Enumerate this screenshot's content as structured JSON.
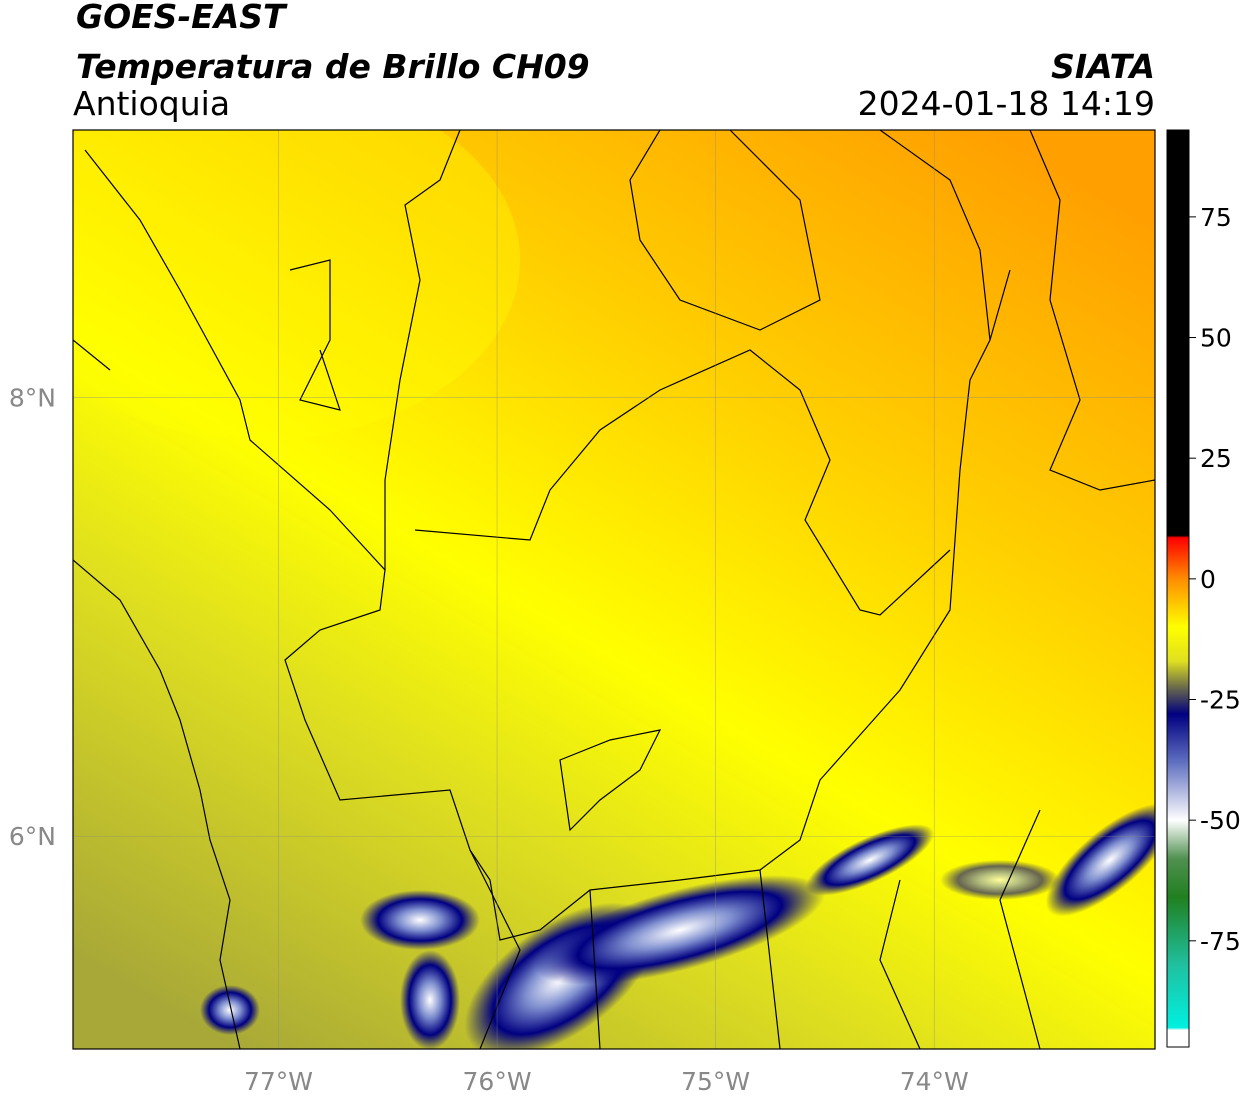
{
  "header": {
    "title": "GOES-EAST",
    "subtitle": "Temperatura de Brillo CH09",
    "region": "Antioquia",
    "source": "SIATA",
    "datetime": "2024-01-18 14:19"
  },
  "map": {
    "lon_range": [
      -77.94,
      -72.99
    ],
    "lat_range": [
      5.03,
      9.22
    ],
    "lon_ticks": [
      {
        "value": -77,
        "label": "77°W"
      },
      {
        "value": -76,
        "label": "76°W"
      },
      {
        "value": -75,
        "label": "75°W"
      },
      {
        "value": -74,
        "label": "74°W"
      }
    ],
    "lat_ticks": [
      {
        "value": 8,
        "label": "8°N"
      },
      {
        "value": 6,
        "label": "6°N"
      }
    ]
  },
  "colorbar": {
    "lim": [
      -97,
      93
    ],
    "ticks": [
      75,
      50,
      25,
      0,
      -25,
      -50,
      -75
    ],
    "stops": [
      {
        "value": 93,
        "color": "#000000"
      },
      {
        "value": 9,
        "color": "#000000"
      },
      {
        "value": 8.5,
        "color": "#ff0000"
      },
      {
        "value": 0,
        "color": "#ff8c00"
      },
      {
        "value": -10,
        "color": "#ffff00"
      },
      {
        "value": -17,
        "color": "#e0e020"
      },
      {
        "value": -23,
        "color": "#606050"
      },
      {
        "value": -28,
        "color": "#000080"
      },
      {
        "value": -38,
        "color": "#6070c0"
      },
      {
        "value": -50,
        "color": "#ffffff"
      },
      {
        "value": -58,
        "color": "#509050"
      },
      {
        "value": -66,
        "color": "#208020"
      },
      {
        "value": -80,
        "color": "#20c0a0"
      },
      {
        "value": -93,
        "color": "#00f0e0"
      },
      {
        "value": -93.5,
        "color": "#ffffff"
      },
      {
        "value": -97,
        "color": "#ffffff"
      }
    ]
  }
}
